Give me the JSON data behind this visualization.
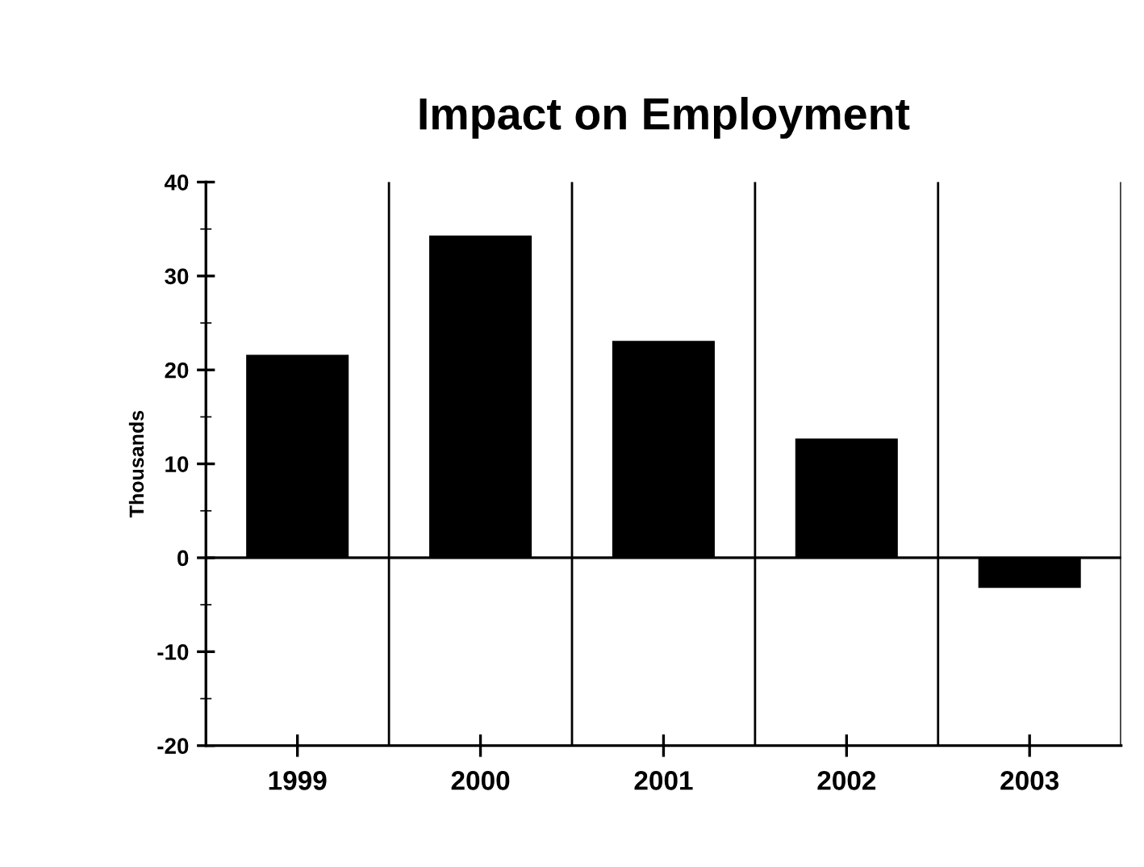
{
  "chart_data": {
    "type": "bar",
    "title": "Impact on Employment",
    "ylabel": "Thousands",
    "categories": [
      "1999",
      "2000",
      "2001",
      "2002",
      "2003"
    ],
    "values": [
      21.6,
      34.3,
      23.1,
      12.7,
      -3.2
    ],
    "color": "#000000",
    "ylim": [
      -20,
      40
    ],
    "yticks": [
      -20,
      -10,
      0,
      10,
      20,
      30,
      40
    ],
    "grid": "x",
    "ref_lines": [
      {
        "axis": "y",
        "value": 0,
        "color": "#000000"
      }
    ]
  }
}
